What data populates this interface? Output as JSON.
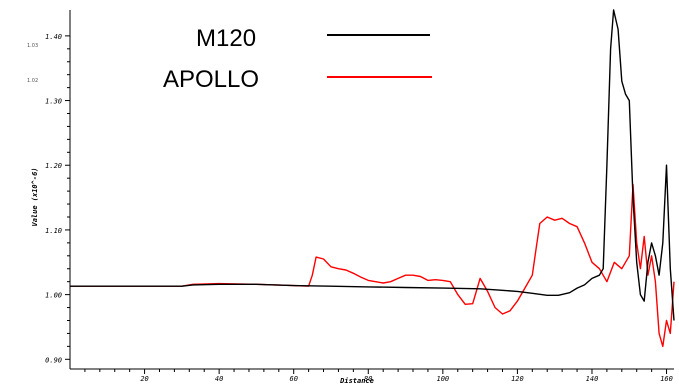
{
  "chart_data": {
    "type": "line",
    "title": "",
    "xlabel": "Distance",
    "ylabel": "Value (x10^-6)",
    "xlim": [
      0,
      162
    ],
    "ylim": [
      0.885,
      1.44
    ],
    "grid": false,
    "legend_placement": "top-center",
    "x_ticks": [
      "20",
      "40",
      "60",
      "80",
      "100",
      "120",
      "140",
      "160"
    ],
    "y_ticks": [
      "0.90",
      "1.00",
      "1.10",
      "1.20",
      "1.30",
      "1.40"
    ],
    "stray_ticks": [
      "1.03",
      "1.02"
    ],
    "series": [
      {
        "name": "M120",
        "color": "#000000",
        "points": [
          [
            0,
            1.013
          ],
          [
            20,
            1.013
          ],
          [
            30,
            1.013
          ],
          [
            33,
            1.015
          ],
          [
            40,
            1.016
          ],
          [
            50,
            1.016
          ],
          [
            60,
            1.014
          ],
          [
            70,
            1.013
          ],
          [
            80,
            1.012
          ],
          [
            90,
            1.011
          ],
          [
            100,
            1.01
          ],
          [
            110,
            1.009
          ],
          [
            115,
            1.007
          ],
          [
            120,
            1.005
          ],
          [
            124,
            1.002
          ],
          [
            128,
            0.999
          ],
          [
            131,
            0.999
          ],
          [
            134,
            1.003
          ],
          [
            136,
            1.01
          ],
          [
            138,
            1.015
          ],
          [
            140,
            1.025
          ],
          [
            142,
            1.03
          ],
          [
            143,
            1.04
          ],
          [
            144,
            1.2
          ],
          [
            145,
            1.38
          ],
          [
            145.8,
            1.44
          ],
          [
            147,
            1.41
          ],
          [
            148,
            1.33
          ],
          [
            149,
            1.31
          ],
          [
            150,
            1.3
          ],
          [
            151,
            1.15
          ],
          [
            152,
            1.05
          ],
          [
            153,
            1.0
          ],
          [
            154,
            0.99
          ],
          [
            155,
            1.05
          ],
          [
            156,
            1.08
          ],
          [
            157,
            1.06
          ],
          [
            158,
            1.03
          ],
          [
            159,
            1.08
          ],
          [
            160,
            1.2
          ],
          [
            161,
            1.04
          ],
          [
            162,
            0.96
          ]
        ]
      },
      {
        "name": "APOLLO",
        "color": "#ff0000",
        "points": [
          [
            0,
            1.013
          ],
          [
            20,
            1.013
          ],
          [
            30,
            1.013
          ],
          [
            33,
            1.016
          ],
          [
            40,
            1.017
          ],
          [
            50,
            1.016
          ],
          [
            60,
            1.014
          ],
          [
            64,
            1.013
          ],
          [
            65,
            1.03
          ],
          [
            66,
            1.058
          ],
          [
            68,
            1.055
          ],
          [
            70,
            1.043
          ],
          [
            72,
            1.04
          ],
          [
            74,
            1.038
          ],
          [
            76,
            1.033
          ],
          [
            78,
            1.027
          ],
          [
            80,
            1.022
          ],
          [
            82,
            1.02
          ],
          [
            84,
            1.018
          ],
          [
            86,
            1.02
          ],
          [
            88,
            1.025
          ],
          [
            90,
            1.03
          ],
          [
            92,
            1.03
          ],
          [
            94,
            1.028
          ],
          [
            96,
            1.022
          ],
          [
            98,
            1.023
          ],
          [
            100,
            1.022
          ],
          [
            102,
            1.02
          ],
          [
            104,
            1.0
          ],
          [
            106,
            0.985
          ],
          [
            108,
            0.986
          ],
          [
            110,
            1.025
          ],
          [
            112,
            1.005
          ],
          [
            114,
            0.98
          ],
          [
            116,
            0.97
          ],
          [
            118,
            0.975
          ],
          [
            120,
            0.99
          ],
          [
            122,
            1.01
          ],
          [
            124,
            1.03
          ],
          [
            125,
            1.07
          ],
          [
            126,
            1.11
          ],
          [
            128,
            1.12
          ],
          [
            130,
            1.115
          ],
          [
            132,
            1.118
          ],
          [
            134,
            1.11
          ],
          [
            136,
            1.105
          ],
          [
            138,
            1.08
          ],
          [
            140,
            1.05
          ],
          [
            142,
            1.04
          ],
          [
            144,
            1.02
          ],
          [
            146,
            1.05
          ],
          [
            148,
            1.04
          ],
          [
            150,
            1.06
          ],
          [
            151,
            1.17
          ],
          [
            152,
            1.08
          ],
          [
            153,
            1.04
          ],
          [
            154,
            1.09
          ],
          [
            155,
            1.03
          ],
          [
            156,
            1.06
          ],
          [
            157,
            1.02
          ],
          [
            158,
            0.94
          ],
          [
            159,
            0.92
          ],
          [
            160,
            0.96
          ],
          [
            161,
            0.94
          ],
          [
            162,
            1.02
          ]
        ]
      }
    ]
  }
}
